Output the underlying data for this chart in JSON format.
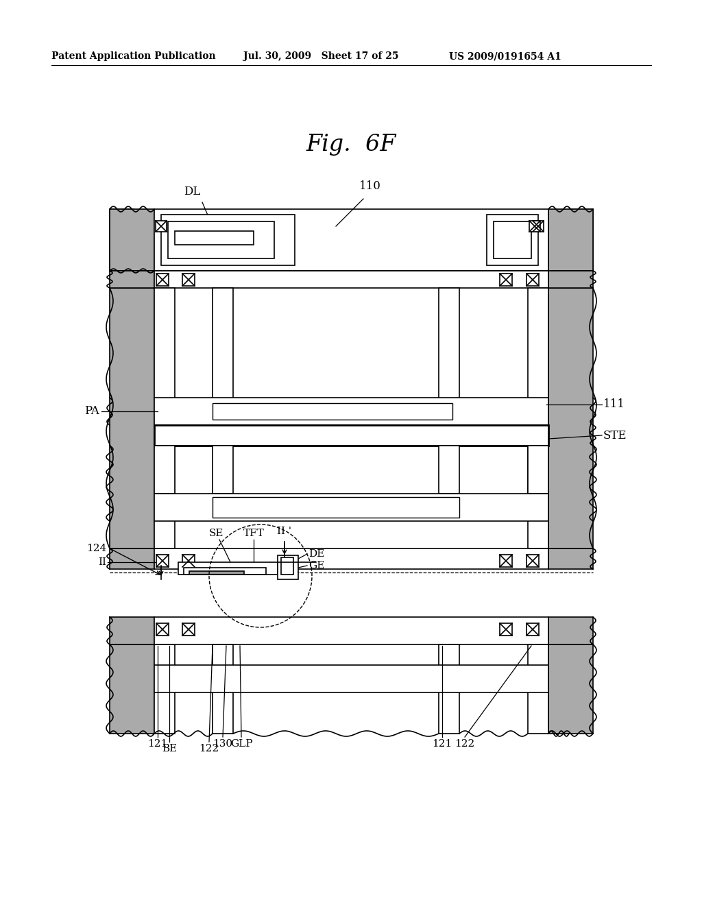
{
  "bg_color": "#ffffff",
  "line_color": "#000000",
  "header_left": "Patent Application Publication",
  "header_mid": "Jul. 30, 2009   Sheet 17 of 25",
  "header_right": "US 2009/0191654 A1",
  "title": "Fig.  6F",
  "fig_width": 10.24,
  "fig_height": 13.2,
  "dpi": 100
}
